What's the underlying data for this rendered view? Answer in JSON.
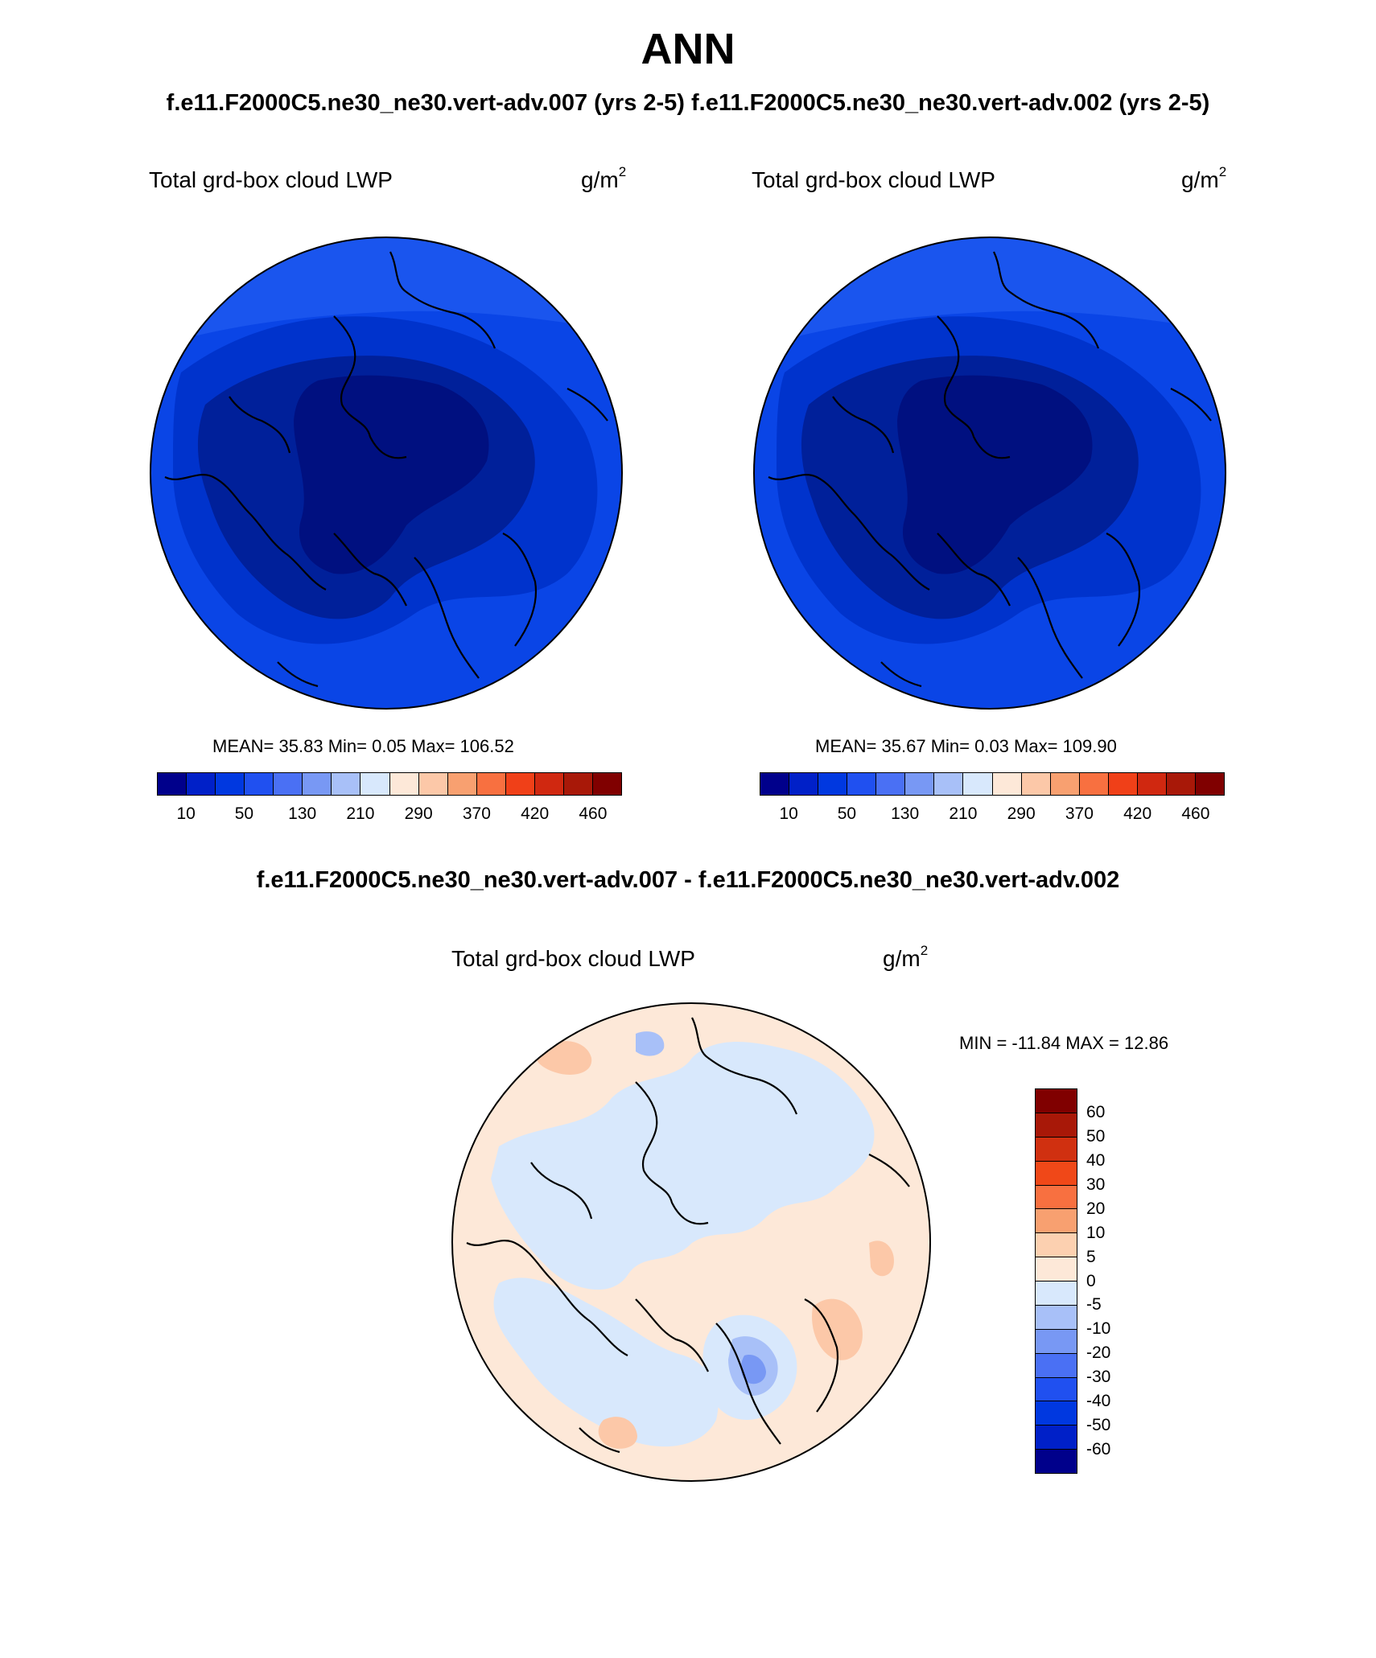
{
  "title": "ANN",
  "subtitle": "f.e11.F2000C5.ne30_ne30.vert-adv.007 (yrs 2-5)  f.e11.F2000C5.ne30_ne30.vert-adv.002 (yrs 2-5)",
  "diff_title": "f.e11.F2000C5.ne30_ne30.vert-adv.007 - f.e11.F2000C5.ne30_ne30.vert-adv.002",
  "panels": [
    {
      "variable": "Total grd-box cloud LWP",
      "units_base": "g/m",
      "units_exp": "2",
      "stats": "MEAN=  35.83  Min=   0.05  Max= 106.52",
      "mean": 35.83,
      "min": 0.05,
      "max": 106.52
    },
    {
      "variable": "Total grd-box cloud LWP",
      "units_base": "g/m",
      "units_exp": "2",
      "stats": "MEAN=  35.67  Min=   0.03  Max= 109.90",
      "mean": 35.67,
      "min": 0.03,
      "max": 109.9
    }
  ],
  "diff_panel": {
    "variable": "Total grd-box cloud LWP",
    "units_base": "g/m",
    "units_exp": "2",
    "stats": "MIN = -11.84 MAX =  12.86",
    "min": -11.84,
    "max": 12.86
  },
  "colorbar_abs": {
    "colors": [
      "#00008b",
      "#0020c8",
      "#0038e0",
      "#2050f0",
      "#4a70f4",
      "#7898f4",
      "#a8c0f8",
      "#d8e8fc",
      "#fde8d8",
      "#fcc8a8",
      "#f8a070",
      "#f87040",
      "#f04018",
      "#d02810",
      "#a81808",
      "#800000"
    ],
    "tick_labels": [
      "10",
      "50",
      "130",
      "210",
      "290",
      "370",
      "420",
      "460"
    ]
  },
  "colorbar_diff": {
    "colors": [
      "#800000",
      "#a81808",
      "#d03010",
      "#f04818",
      "#f87040",
      "#f8a070",
      "#fcd0b0",
      "#fde8d8",
      "#d8e8fc",
      "#a8c0f8",
      "#7898f4",
      "#4a70f4",
      "#2050f0",
      "#0038e0",
      "#0020c8",
      "#00008b"
    ],
    "tick_labels": [
      "60",
      "50",
      "40",
      "30",
      "20",
      "10",
      "5",
      "0",
      "-5",
      "-10",
      "-20",
      "-30",
      "-40",
      "-50",
      "-60"
    ]
  },
  "map_colors": {
    "abs_deep": "#00209a",
    "abs_darker": "#001080",
    "abs_mid": "#0033cc",
    "abs_base": "#0a45e6",
    "abs_light": "#1a55ee",
    "diff_pos": "#fde8d8",
    "diff_neg": "#d8e8fc",
    "diff_pos2": "#fcc8a8",
    "diff_neg2": "#a8c0f8",
    "diff_neg3": "#7898f4"
  }
}
